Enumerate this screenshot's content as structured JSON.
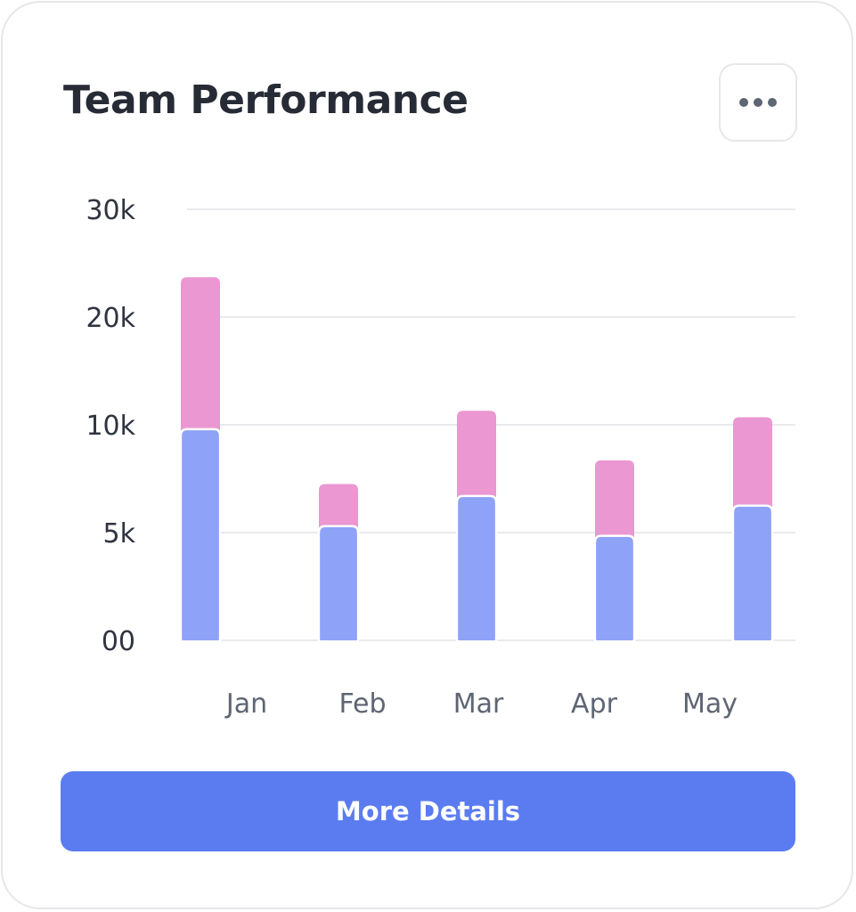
{
  "card": {
    "title": "Team Performance",
    "more_button_label": "More Details"
  },
  "colors": {
    "series_bottom": "#8ea2f7",
    "series_top": "#ea97d2",
    "button": "#5b7cf0",
    "grid": "#e9eaee"
  },
  "chart_data": {
    "type": "bar",
    "stacked": true,
    "title": "Team Performance",
    "xlabel": "",
    "ylabel": "",
    "categories": [
      "Jan",
      "Feb",
      "Mar",
      "Apr",
      "May"
    ],
    "series": [
      {
        "values": [
          9800,
          5300,
          6700,
          4850,
          6250
        ]
      },
      {
        "values": [
          13900,
          1950,
          4600,
          3500,
          4450
        ]
      }
    ],
    "y_ticks": [
      {
        "value": 0,
        "label": "00"
      },
      {
        "value": 5000,
        "label": "5k"
      },
      {
        "value": 10000,
        "label": "10k"
      },
      {
        "value": 20000,
        "label": "20k"
      },
      {
        "value": 30000,
        "label": "30k"
      }
    ],
    "y_scale": "piecewise-linear (tick spacing uniform: 0, 5k, 10k, 20k, 30k)",
    "ylim": [
      0,
      30000
    ],
    "grid": true,
    "legend": "none"
  }
}
